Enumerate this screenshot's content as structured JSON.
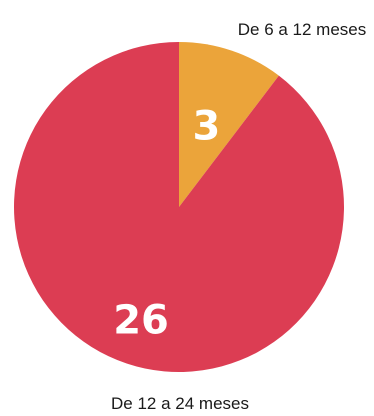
{
  "chart_data": {
    "type": "pie",
    "title": "",
    "slices": [
      {
        "label": "De 6 a 12 meses",
        "value": 3,
        "value_label": "3",
        "color": "#EBA43A"
      },
      {
        "label": "De 12 a 24 meses",
        "value": 26,
        "value_label": "26",
        "color": "#DC3D53"
      }
    ],
    "start_angle": "12 o'clock",
    "direction": "clockwise",
    "legend": "none",
    "category_labels": "outside"
  }
}
